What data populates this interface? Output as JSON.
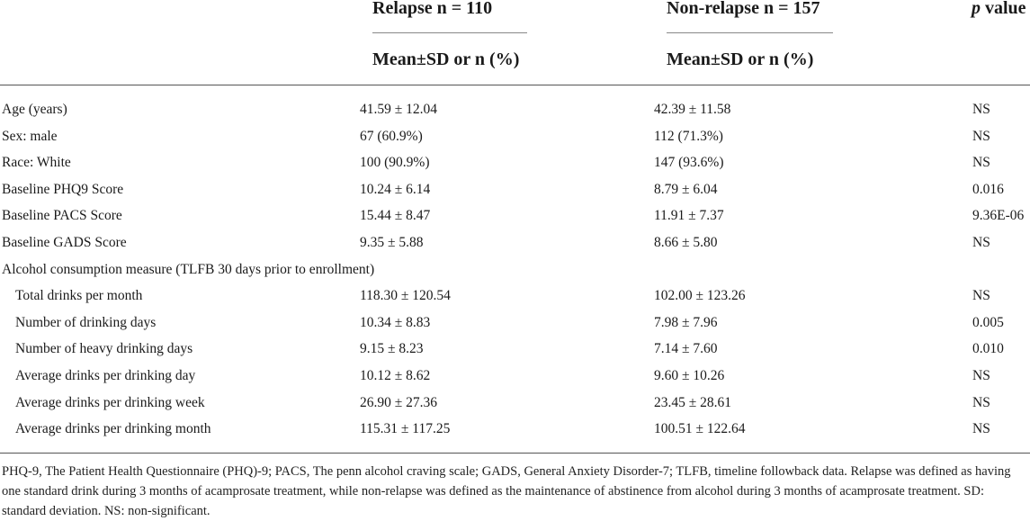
{
  "header": {
    "relapse_title": "Relapse n = 110",
    "nonrelapse_title": "Non-relapse n = 157",
    "pvalue_p": "p",
    "pvalue_rest": " value",
    "relapse_sub": "Mean±SD or n (%)",
    "nonrelapse_sub": "Mean±SD or n (%)"
  },
  "rows": [
    {
      "label": "Age (years)",
      "relapse": "41.59 ± 12.04",
      "nonrelapse": "42.39 ± 11.58",
      "p": "NS"
    },
    {
      "label": "Sex: male",
      "relapse": "67 (60.9%)",
      "nonrelapse": "112 (71.3%)",
      "p": "NS"
    },
    {
      "label": "Race: White",
      "relapse": "100 (90.9%)",
      "nonrelapse": "147 (93.6%)",
      "p": "NS"
    },
    {
      "label": "Baseline PHQ9 Score",
      "relapse": "10.24 ± 6.14",
      "nonrelapse": "8.79 ± 6.04",
      "p": "0.016"
    },
    {
      "label": "Baseline PACS Score",
      "relapse": "15.44 ± 8.47",
      "nonrelapse": "11.91 ± 7.37",
      "p": "9.36E-06"
    },
    {
      "label": "Baseline GADS Score",
      "relapse": "9.35 ± 5.88",
      "nonrelapse": "8.66 ± 5.80",
      "p": "NS"
    },
    {
      "label": "Alcohol consumption measure (TLFB 30 days prior to enrollment)",
      "relapse": "",
      "nonrelapse": "",
      "p": ""
    },
    {
      "label": "Total drinks per month",
      "relapse": "118.30 ± 120.54",
      "nonrelapse": "102.00 ± 123.26",
      "p": "NS"
    },
    {
      "label": "Number of drinking days",
      "relapse": "10.34 ± 8.83",
      "nonrelapse": "7.98 ± 7.96",
      "p": "0.005"
    },
    {
      "label": "Number of heavy drinking days",
      "relapse": "9.15 ± 8.23",
      "nonrelapse": "7.14 ± 7.60",
      "p": "0.010"
    },
    {
      "label": "Average drinks per drinking day",
      "relapse": "10.12 ± 8.62",
      "nonrelapse": "9.60 ± 10.26",
      "p": "NS"
    },
    {
      "label": "Average drinks per drinking week",
      "relapse": "26.90 ± 27.36",
      "nonrelapse": "23.45 ± 28.61",
      "p": "NS"
    },
    {
      "label": "Average drinks per drinking month",
      "relapse": "115.31 ± 117.25",
      "nonrelapse": "100.51 ± 122.64",
      "p": "NS"
    }
  ],
  "footnote": "PHQ-9, The Patient Health Questionnaire (PHQ)-9; PACS, The penn alcohol craving scale; GADS, General Anxiety Disorder-7; TLFB, timeline followback data. Relapse was defined as having one standard drink during 3 months of acamprosate treatment, while non-relapse was defined as the maintenance of abstinence from alcohol during 3 months of acamprosate treatment. SD: standard deviation. NS: non-significant."
}
